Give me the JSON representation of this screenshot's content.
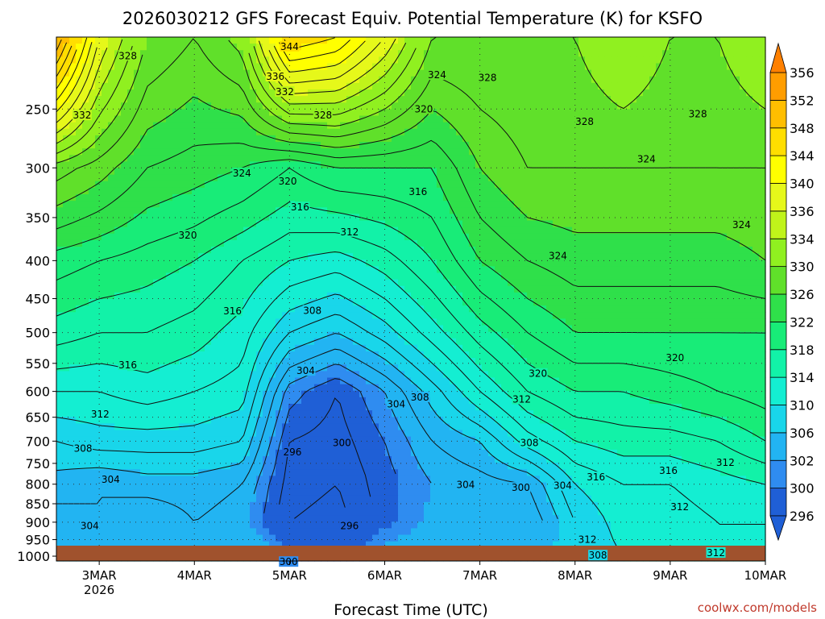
{
  "chart_data": {
    "type": "heatmap",
    "title": "2026030212 GFS Forecast Equiv. Potential Temperature (K) for KSFO",
    "xlabel": "Forecast Time (UTC)",
    "ylabel": "",
    "credit": "coolwx.com/models",
    "x_ticks": [
      "3MAR",
      "4MAR",
      "5MAR",
      "6MAR",
      "7MAR",
      "8MAR",
      "9MAR",
      "10MAR"
    ],
    "x_tick_year": "2026",
    "x_range_days": [
      2.55,
      10.0
    ],
    "y_ticks": [
      250,
      300,
      350,
      400,
      450,
      500,
      550,
      600,
      650,
      700,
      750,
      800,
      850,
      900,
      950,
      1000
    ],
    "y_range_hpa": [
      200,
      1015
    ],
    "y_scale": "log-pressure",
    "colorbar_levels": [
      296,
      300,
      302,
      306,
      310,
      314,
      318,
      322,
      326,
      330,
      334,
      336,
      340,
      344,
      348,
      352,
      356
    ],
    "colorbar_colors": [
      "#1f5fd6",
      "#2f8cf0",
      "#22b4f2",
      "#19d6ea",
      "#14eed2",
      "#12f2a8",
      "#18ec78",
      "#2fe04a",
      "#60e02a",
      "#90f020",
      "#c0f41a",
      "#e6f81a",
      "#ffff00",
      "#ffde00",
      "#ffbe00",
      "#ff9d00",
      "#ff8000"
    ],
    "ground_color": "#a0522d",
    "profile_pressures": [
      200,
      300,
      400,
      500,
      600,
      700,
      800,
      900,
      1000
    ],
    "profile_times": [
      2.55,
      3.0,
      3.5,
      4.0,
      4.5,
      5.0,
      5.5,
      6.0,
      6.5,
      7.0,
      7.5,
      8.0,
      8.5,
      9.0,
      9.5,
      10.0
    ],
    "theta_e_grid": [
      [
        352,
        338,
        330,
        328,
        331,
        346,
        344,
        338,
        330,
        330,
        330,
        330,
        332,
        330,
        330,
        332
      ],
      [
        329,
        327,
        324,
        323,
        322,
        320,
        322,
        322,
        322,
        326,
        328,
        328,
        328,
        328,
        328,
        328
      ],
      [
        321,
        320,
        319,
        318,
        316,
        314,
        313,
        315,
        318,
        322,
        324,
        325,
        325,
        325,
        325,
        326
      ],
      [
        317,
        316,
        316,
        315,
        313,
        308,
        306,
        309,
        313,
        317,
        320,
        322,
        322,
        322,
        322,
        322
      ],
      [
        312,
        312,
        313,
        312,
        311,
        301,
        298,
        302,
        307,
        312,
        316,
        318,
        318,
        319,
        320,
        321
      ],
      [
        308,
        309,
        309,
        309,
        308,
        298,
        297,
        300,
        304,
        306,
        311,
        314,
        315,
        315,
        316,
        318
      ],
      [
        305,
        304,
        305,
        305,
        304,
        297,
        296,
        299,
        302,
        303,
        304,
        310,
        312,
        312,
        313,
        314
      ],
      [
        303,
        304,
        302,
        304,
        303,
        296,
        295,
        299,
        303,
        302,
        302,
        308,
        311,
        311,
        312,
        312
      ],
      [
        306,
        307,
        306,
        306,
        307,
        300,
        298,
        304,
        306,
        304,
        304,
        308,
        310,
        310,
        312,
        312
      ]
    ],
    "contour_labels": [
      {
        "text": "328",
        "t": 3.3,
        "p": 212
      },
      {
        "text": "332",
        "t": 2.82,
        "p": 255
      },
      {
        "text": "344",
        "t": 5.0,
        "p": 206
      },
      {
        "text": "336",
        "t": 4.85,
        "p": 226
      },
      {
        "text": "332",
        "t": 4.95,
        "p": 237
      },
      {
        "text": "328",
        "t": 5.35,
        "p": 255
      },
      {
        "text": "324",
        "t": 6.55,
        "p": 225
      },
      {
        "text": "328",
        "t": 7.08,
        "p": 227
      },
      {
        "text": "320",
        "t": 6.41,
        "p": 250
      },
      {
        "text": "328",
        "t": 8.1,
        "p": 260
      },
      {
        "text": "328",
        "t": 9.29,
        "p": 254
      },
      {
        "text": "324",
        "t": 4.5,
        "p": 305
      },
      {
        "text": "320",
        "t": 4.98,
        "p": 313
      },
      {
        "text": "316",
        "t": 6.35,
        "p": 323
      },
      {
        "text": "316",
        "t": 5.11,
        "p": 339
      },
      {
        "text": "320",
        "t": 3.93,
        "p": 370
      },
      {
        "text": "312",
        "t": 5.63,
        "p": 366
      },
      {
        "text": "324",
        "t": 8.75,
        "p": 292
      },
      {
        "text": "324",
        "t": 9.75,
        "p": 358
      },
      {
        "text": "324",
        "t": 7.82,
        "p": 394
      },
      {
        "text": "316",
        "t": 4.4,
        "p": 468
      },
      {
        "text": "308",
        "t": 5.24,
        "p": 467
      },
      {
        "text": "320",
        "t": 9.05,
        "p": 541
      },
      {
        "text": "316",
        "t": 3.3,
        "p": 553
      },
      {
        "text": "304",
        "t": 5.17,
        "p": 563
      },
      {
        "text": "320",
        "t": 7.61,
        "p": 568
      },
      {
        "text": "308",
        "t": 6.37,
        "p": 611
      },
      {
        "text": "312",
        "t": 7.44,
        "p": 615
      },
      {
        "text": "304",
        "t": 6.12,
        "p": 624
      },
      {
        "text": "312",
        "t": 3.01,
        "p": 644
      },
      {
        "text": "300",
        "t": 5.55,
        "p": 704
      },
      {
        "text": "308",
        "t": 7.52,
        "p": 704
      },
      {
        "text": "308",
        "t": 2.83,
        "p": 716
      },
      {
        "text": "296",
        "t": 5.03,
        "p": 724
      },
      {
        "text": "312",
        "t": 9.58,
        "p": 748
      },
      {
        "text": "316",
        "t": 8.98,
        "p": 767
      },
      {
        "text": "304",
        "t": 3.12,
        "p": 789
      },
      {
        "text": "316",
        "t": 8.22,
        "p": 783
      },
      {
        "text": "304",
        "t": 6.85,
        "p": 802
      },
      {
        "text": "300",
        "t": 7.43,
        "p": 809
      },
      {
        "text": "304",
        "t": 7.87,
        "p": 804
      },
      {
        "text": "312",
        "t": 9.1,
        "p": 859
      },
      {
        "text": "296",
        "t": 5.63,
        "p": 910
      },
      {
        "text": "304",
        "t": 2.9,
        "p": 910
      },
      {
        "text": "312",
        "t": 8.13,
        "p": 950
      },
      {
        "text": "308",
        "t": 8.24,
        "p": 998
      },
      {
        "text": "312",
        "t": 9.48,
        "p": 990
      },
      {
        "text": "300",
        "t": 4.99,
        "p": 1018
      }
    ]
  }
}
